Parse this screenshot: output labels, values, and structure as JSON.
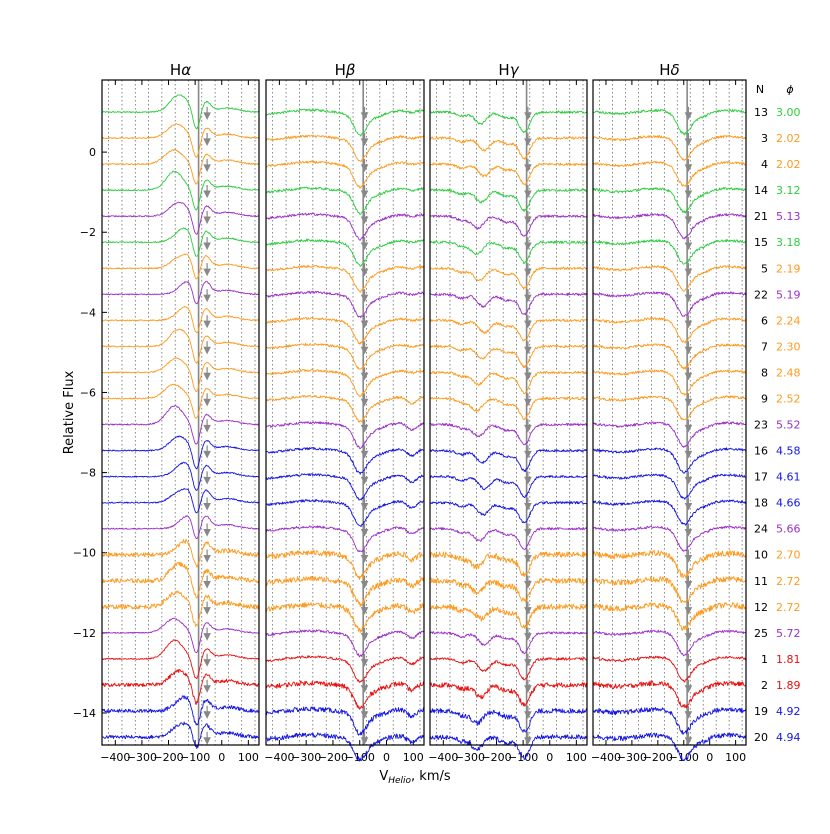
{
  "chart_data": {
    "type": "line",
    "ylabel": "Relative Flux",
    "xlabel_main": "V",
    "xlabel_sub": "Helio",
    "xlabel_unit": ", km/s",
    "xlim": [
      -450,
      140
    ],
    "ylim": [
      -14.8,
      1.8
    ],
    "xticks": [
      -400,
      -300,
      -200,
      -100,
      0,
      100
    ],
    "xtick_labels": [
      "−400",
      "−300",
      "−200",
      "−100",
      "0",
      "100"
    ],
    "yticks": [
      0,
      -2,
      -4,
      -6,
      -8,
      -10,
      -12,
      -14
    ],
    "ytick_labels": [
      "0",
      "−2",
      "−4",
      "−6",
      "−8",
      "−10",
      "−12",
      "−14"
    ],
    "grid_x": [
      -425,
      -375,
      -325,
      -275,
      -225,
      -175,
      -125,
      -75,
      -25,
      25,
      75,
      125
    ],
    "reference_velocity": -87,
    "panels": [
      {
        "title_main": "H",
        "title_sym": "α",
        "key": "halpha"
      },
      {
        "title_main": "H",
        "title_sym": "β",
        "key": "hbeta"
      },
      {
        "title_main": "H",
        "title_sym": "γ",
        "key": "hgamma"
      },
      {
        "title_main": "H",
        "title_sym": "δ",
        "key": "hdelta"
      }
    ],
    "table_headers": {
      "n": "N",
      "phase": "ϕ"
    },
    "spectra": [
      {
        "n": "13",
        "phase": "3.00",
        "color": "#2ecc40",
        "offset": 1.0
      },
      {
        "n": "3",
        "phase": "2.02",
        "color": "#ff9a1f",
        "offset": 0.35
      },
      {
        "n": "4",
        "phase": "2.02",
        "color": "#ff9a1f",
        "offset": -0.3
      },
      {
        "n": "14",
        "phase": "3.12",
        "color": "#2ecc40",
        "offset": -0.95
      },
      {
        "n": "21",
        "phase": "5.13",
        "color": "#9b30c8",
        "offset": -1.6
      },
      {
        "n": "15",
        "phase": "3.18",
        "color": "#2ecc40",
        "offset": -2.25
      },
      {
        "n": "5",
        "phase": "2.19",
        "color": "#ff9a1f",
        "offset": -2.9
      },
      {
        "n": "22",
        "phase": "5.19",
        "color": "#9b30c8",
        "offset": -3.55
      },
      {
        "n": "6",
        "phase": "2.24",
        "color": "#ff9a1f",
        "offset": -4.2
      },
      {
        "n": "7",
        "phase": "2.30",
        "color": "#ff9a1f",
        "offset": -4.85
      },
      {
        "n": "8",
        "phase": "2.48",
        "color": "#ff9a1f",
        "offset": -5.5
      },
      {
        "n": "9",
        "phase": "2.52",
        "color": "#ff9a1f",
        "offset": -6.15
      },
      {
        "n": "23",
        "phase": "5.52",
        "color": "#9b30c8",
        "offset": -6.8
      },
      {
        "n": "16",
        "phase": "4.58",
        "color": "#1515e0",
        "offset": -7.45
      },
      {
        "n": "17",
        "phase": "4.61",
        "color": "#1515e0",
        "offset": -8.1
      },
      {
        "n": "18",
        "phase": "4.66",
        "color": "#1515e0",
        "offset": -8.75
      },
      {
        "n": "24",
        "phase": "5.66",
        "color": "#9b30c8",
        "offset": -9.4
      },
      {
        "n": "10",
        "phase": "2.70",
        "color": "#ff9a1f",
        "offset": -10.05
      },
      {
        "n": "11",
        "phase": "2.72",
        "color": "#ff9a1f",
        "offset": -10.7
      },
      {
        "n": "12",
        "phase": "2.72",
        "color": "#ff9a1f",
        "offset": -11.35
      },
      {
        "n": "25",
        "phase": "5.72",
        "color": "#9b30c8",
        "offset": -12.0
      },
      {
        "n": "1",
        "phase": "1.81",
        "color": "#e81010",
        "offset": -12.65
      },
      {
        "n": "2",
        "phase": "1.89",
        "color": "#e81010",
        "offset": -13.3
      },
      {
        "n": "19",
        "phase": "4.92",
        "color": "#1515e0",
        "offset": -13.95
      },
      {
        "n": "20",
        "phase": "4.94",
        "color": "#1515e0",
        "offset": -14.6
      }
    ]
  }
}
